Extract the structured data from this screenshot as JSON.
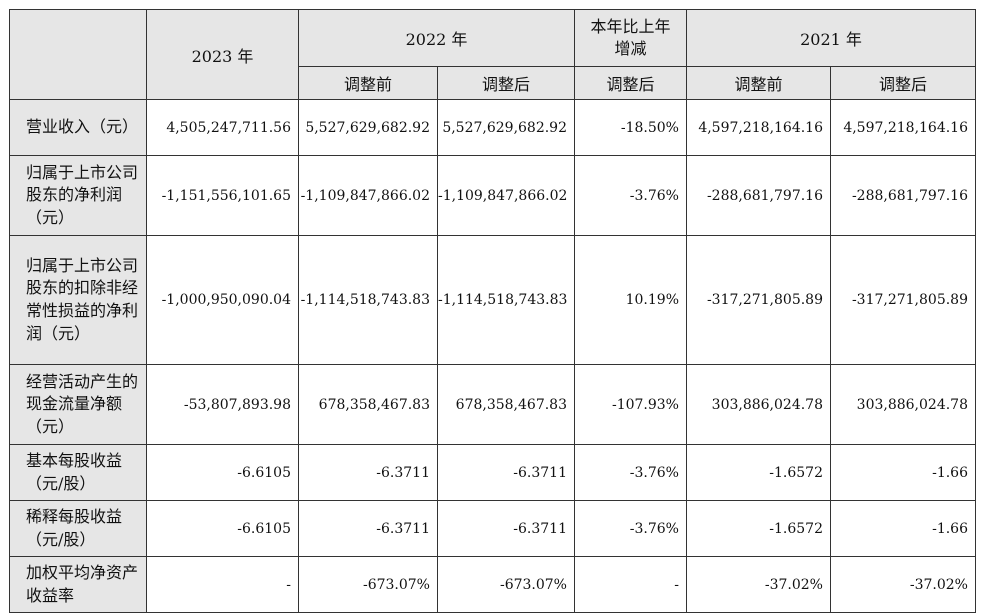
{
  "header": {
    "y2023": "2023 年",
    "y2022": "2022 年",
    "change": "本年比上年增减",
    "y2021": "2021 年",
    "before": "调整前",
    "after": "调整后",
    "change_sub": "调整后"
  },
  "rows": [
    {
      "label": "营业收入（元）",
      "c2023": "4,505,247,711.56",
      "c2022b": "5,527,629,682.92",
      "c2022a": "5,527,629,682.92",
      "chg": "-18.50%",
      "c2021b": "4,597,218,164.16",
      "c2021a": "4,597,218,164.16"
    },
    {
      "label": "归属于上市公司股东的净利润（元）",
      "c2023": "-1,151,556,101.65",
      "c2022b": "-1,109,847,866.02",
      "c2022a": "-1,109,847,866.02",
      "chg": "-3.76%",
      "c2021b": "-288,681,797.16",
      "c2021a": "-288,681,797.16"
    },
    {
      "label": "归属于上市公司股东的扣除非经常性损益的净利润（元）",
      "c2023": "-1,000,950,090.04",
      "c2022b": "-1,114,518,743.83",
      "c2022a": "-1,114,518,743.83",
      "chg": "10.19%",
      "c2021b": "-317,271,805.89",
      "c2021a": "-317,271,805.89"
    },
    {
      "label": "经营活动产生的现金流量净额（元）",
      "c2023": "-53,807,893.98",
      "c2022b": "678,358,467.83",
      "c2022a": "678,358,467.83",
      "chg": "-107.93%",
      "c2021b": "303,886,024.78",
      "c2021a": "303,886,024.78"
    },
    {
      "label": "基本每股收益（元/股）",
      "c2023": "-6.6105",
      "c2022b": "-6.3711",
      "c2022a": "-6.3711",
      "chg": "-3.76%",
      "c2021b": "-1.6572",
      "c2021a": "-1.66"
    },
    {
      "label": "稀释每股收益（元/股）",
      "c2023": "-6.6105",
      "c2022b": "-6.3711",
      "c2022a": "-6.3711",
      "chg": "-3.76%",
      "c2021b": "-1.6572",
      "c2021a": "-1.66"
    },
    {
      "label": "加权平均净资产收益率",
      "c2023": "-",
      "c2022b": "-673.07%",
      "c2022a": "-673.07%",
      "chg": "-",
      "c2021b": "-37.02%",
      "c2021a": "-37.02%"
    }
  ]
}
